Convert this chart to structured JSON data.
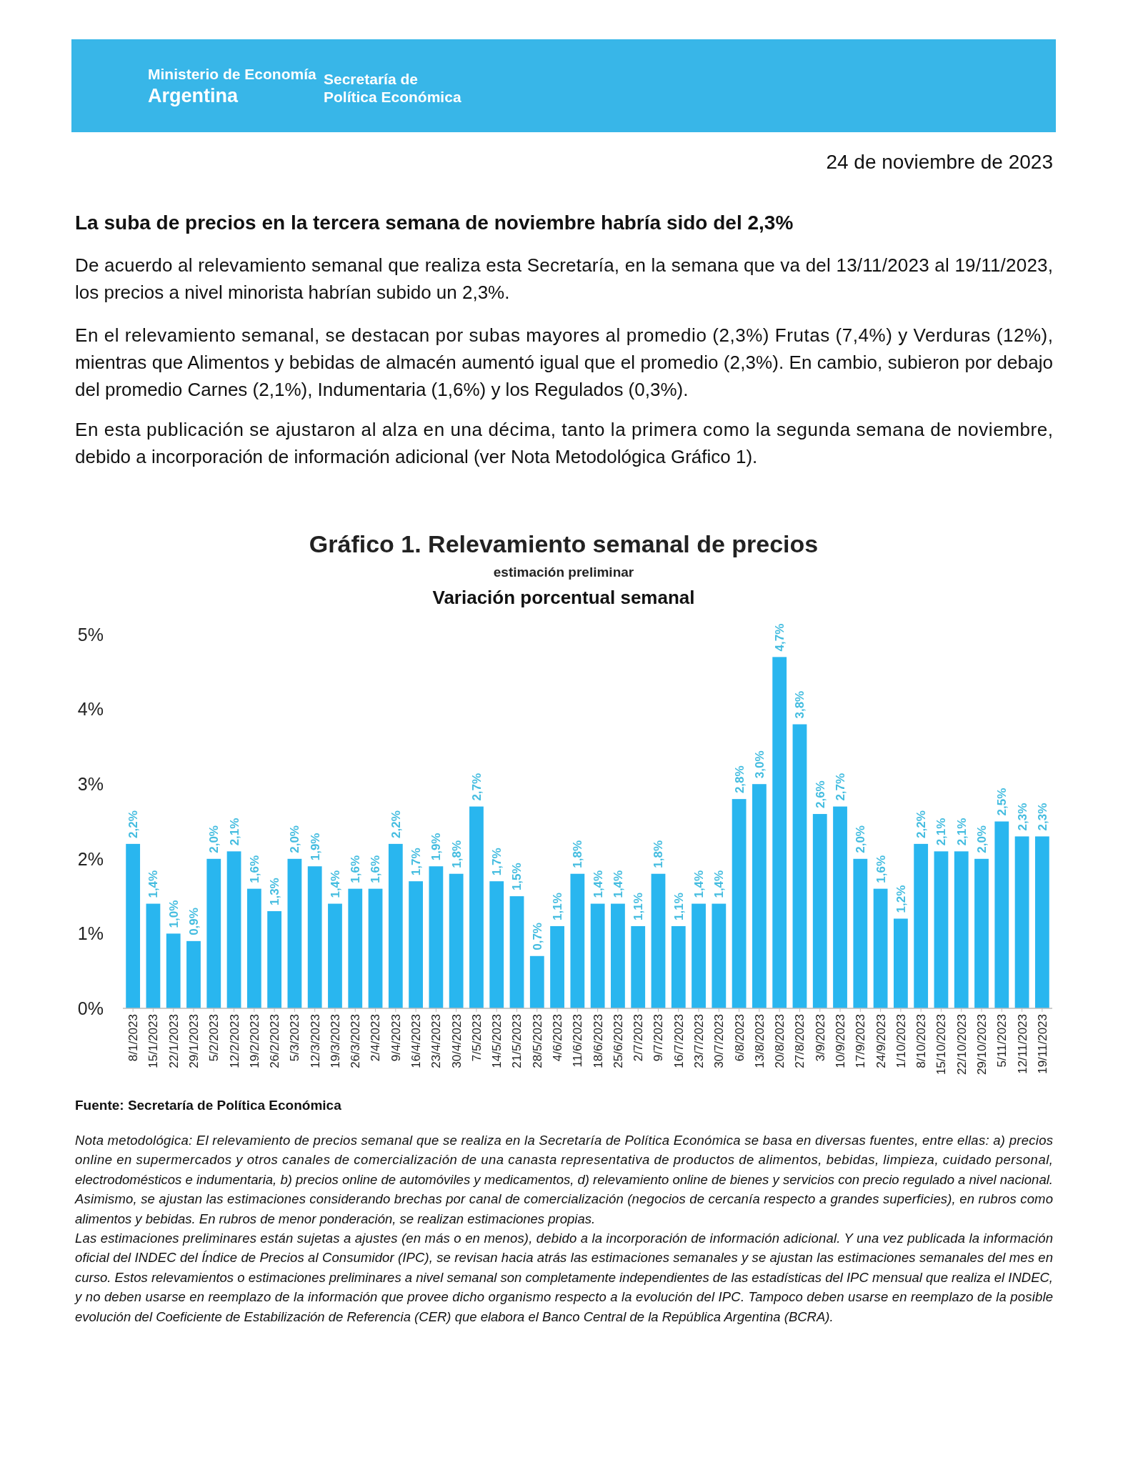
{
  "chart_data": {
    "type": "bar",
    "title": "Gráfico 1. Relevamiento semanal de precios",
    "subtitle": "estimación preliminar",
    "annotations": [
      "Ministerio de Economía",
      "Argentina",
      "Secretaría de",
      "Política Económica",
      "24 de noviembre de 2023",
      "La suba de precios en la tercera semana de noviembre habría sido del 2,3%",
      "De acuerdo al relevamiento semanal que realiza esta Secretaría, en la semana que va del 13/11/2023 al 19/11/2023, los precios a nivel minorista habrían subido un 2,3%.",
      "En el relevamiento semanal, se destacan por subas mayores al promedio (2,3%) Frutas (7,4%) y Verduras (12%), mientras que Alimentos y bebidas de almacén aumentó igual que el promedio (2,3%). En cambio, subieron por debajo del promedio Carnes (2,1%), Indumentaria (1,6%) y los Regulados (0,3%).",
      "En esta publicación se ajustaron al alza en una décima, tanto la primera como la segunda semana de noviembre, debido a incorporación de información adicional (ver Nota Metodológica Gráfico 1).",
      "Variación porcentual semanal",
      "Fuente: Secretaría de Política Económica",
      "Nota metodológica: El relevamiento de precios semanal que se realiza en la Secretaría de Política Económica se basa en diversas fuentes, entre ellas: a) precios online en supermercados y otros canales de comercialización de una canasta representativa de productos de alimentos, bebidas, limpieza, cuidado personal, electrodomésticos e indumentaria, b) precios online de automóviles y medicamentos, d) relevamiento online de bienes y servicios con precio regulado a nivel nacional. Asimismo, se ajustan las estimaciones considerando brechas por canal de comercialización (negocios de cercanía respecto a grandes superficies), en rubros como alimentos y bebidas. En rubros de menor ponderación, se realizan estimaciones propias.",
      "Las estimaciones preliminares están sujetas a ajustes (en más o en menos), debido a la incorporación de información adicional. Y una vez publicada la información oficial del INDEC del Índice de Precios al Consumidor (IPC), se revisan hacia atrás las estimaciones semanales y se ajustan las estimaciones semanales del mes en curso. Estos relevamientos o estimaciones preliminares a nivel semanal son completamente independientes de las estadísticas del IPC mensual que realiza el INDEC, y no deben usarse en reemplazo de la información que provee dicho organismo respecto a la evolución del IPC. Tampoco deben usarse en reemplazo de la posible evolución del Coeficiente de Estabilización de Referencia (CER) que elabora el Banco Central de la República Argentina (BCRA)."
    ],
    "categories": [
      "8/1/2023",
      "15/1/2023",
      "22/1/2023",
      "29/1/2023",
      "5/2/2023",
      "12/2/2023",
      "19/2/2023",
      "26/2/2023",
      "5/3/2023",
      "12/3/2023",
      "19/3/2023",
      "26/3/2023",
      "2/4/2023",
      "9/4/2023",
      "16/4/2023",
      "23/4/2023",
      "30/4/2023",
      "7/5/2023",
      "14/5/2023",
      "21/5/2023",
      "28/5/2023",
      "4/6/2023",
      "11/6/2023",
      "18/6/2023",
      "25/6/2023",
      "2/7/2023",
      "9/7/2023",
      "16/7/2023",
      "23/7/2023",
      "30/7/2023",
      "6/8/2023",
      "13/8/2023",
      "20/8/2023",
      "27/8/2023",
      "3/9/2023",
      "10/9/2023",
      "17/9/2023",
      "24/9/2023",
      "1/10/2023",
      "8/10/2023",
      "15/10/2023",
      "22/10/2023",
      "29/10/2023",
      "5/11/2023",
      "12/11/2023",
      "19/11/2023"
    ],
    "values": [
      2.2,
      1.4,
      1.0,
      0.9,
      2.0,
      2.1,
      1.6,
      1.3,
      2.0,
      1.9,
      1.4,
      1.6,
      1.6,
      2.2,
      1.7,
      1.9,
      1.8,
      2.7,
      1.7,
      1.5,
      0.7,
      1.1,
      1.8,
      1.4,
      1.4,
      1.1,
      1.8,
      1.1,
      1.4,
      1.4,
      2.8,
      3.0,
      4.7,
      3.8,
      2.6,
      2.7,
      2.0,
      1.6,
      1.2,
      2.2,
      2.1,
      2.1,
      2.0,
      2.5,
      2.3,
      2.3
    ],
    "value_labels": [
      "2,2%",
      "1,4%",
      "1,0%",
      "0,9%",
      "2,0%",
      "2,1%",
      "1,6%",
      "1,3%",
      "2,0%",
      "1,9%",
      "1,4%",
      "1,6%",
      "1,6%",
      "2,2%",
      "1,7%",
      "1,9%",
      "1,8%",
      "2,7%",
      "1,7%",
      "1,5%",
      "0,7%",
      "1,1%",
      "1,8%",
      "1,4%",
      "1,4%",
      "1,1%",
      "1,8%",
      "1,1%",
      "1,4%",
      "1,4%",
      "2,8%",
      "3,0%",
      "4,7%",
      "3,8%",
      "2,6%",
      "2,7%",
      "2,0%",
      "1,6%",
      "1,2%",
      "2,2%",
      "2,1%",
      "2,1%",
      "2,0%",
      "2,5%",
      "2,3%",
      "2,3%"
    ],
    "color": "#29b6ef",
    "ylim": [
      0,
      5
    ],
    "yticks": [
      {
        "value": 0,
        "label": "0%"
      },
      {
        "value": 1,
        "label": "1%"
      },
      {
        "value": 2,
        "label": "2%"
      },
      {
        "value": 3,
        "label": "3%"
      },
      {
        "value": 4,
        "label": "4%"
      },
      {
        "value": 5,
        "label": "5%"
      }
    ],
    "grid": false
  }
}
